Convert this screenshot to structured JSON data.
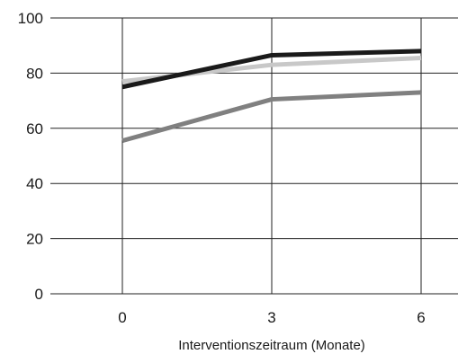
{
  "chart_data": {
    "type": "line",
    "x": [
      0,
      3,
      6
    ],
    "x_tick_labels": [
      "0",
      "3",
      "6"
    ],
    "y_ticks": [
      0,
      20,
      40,
      60,
      80,
      100
    ],
    "y_tick_labels": [
      "0",
      "20",
      "40",
      "60",
      "80",
      "100"
    ],
    "ylim": [
      0,
      100
    ],
    "xlabel": "Interventionszeitraum (Monate)",
    "ylabel": "",
    "title": "",
    "grid": true,
    "series": [
      {
        "values": [
          77,
          83,
          85.5
        ],
        "color": "#c8c8c8"
      },
      {
        "values": [
          75,
          86.5,
          88
        ],
        "color": "#1a1a1a"
      },
      {
        "values": [
          55.5,
          70.5,
          73
        ],
        "color": "#808080"
      }
    ]
  }
}
